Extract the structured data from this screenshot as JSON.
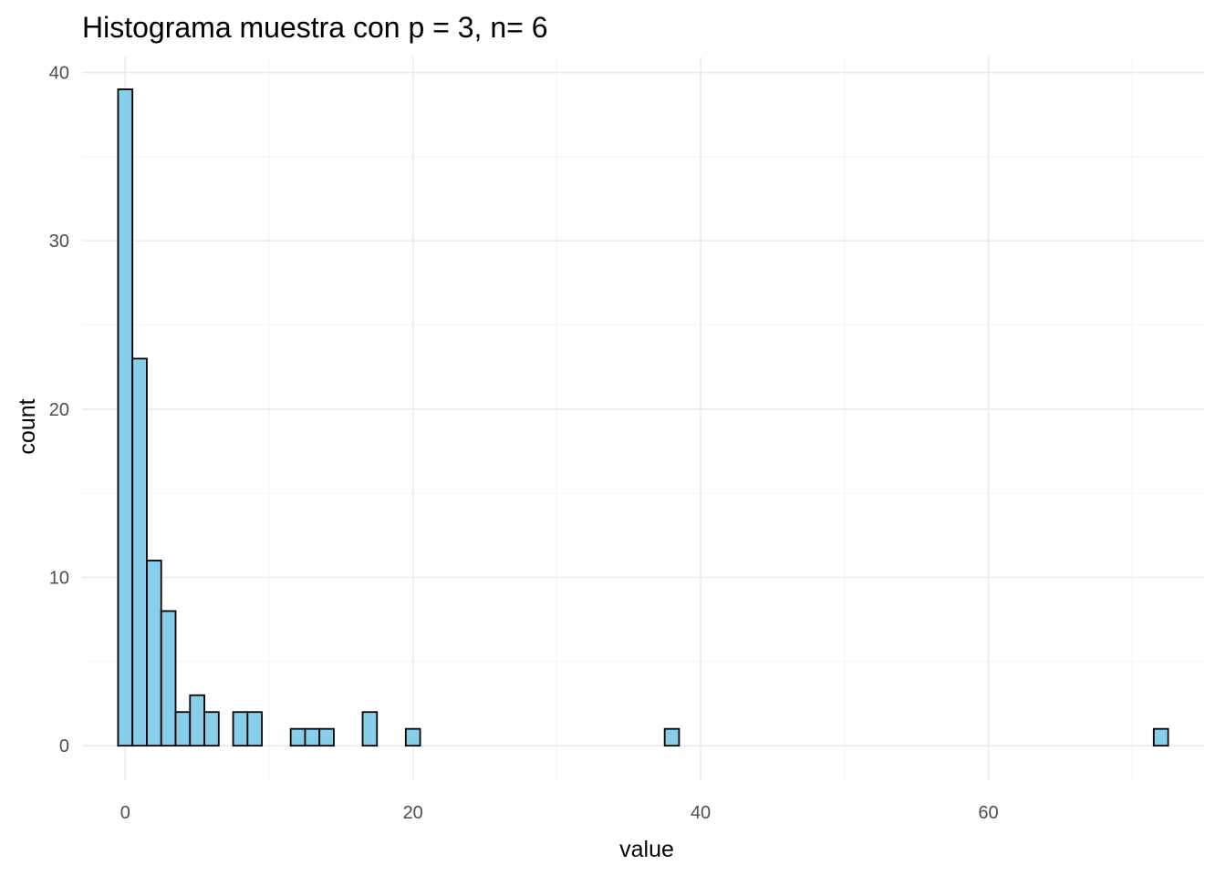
{
  "chart_data": {
    "type": "bar",
    "title": "Histograma muestra con p = 3, n= 6",
    "xlabel": "value",
    "ylabel": "count",
    "bin_width": 1,
    "bins": [
      {
        "x": 0,
        "count": 39
      },
      {
        "x": 1,
        "count": 23
      },
      {
        "x": 2,
        "count": 11
      },
      {
        "x": 3,
        "count": 8
      },
      {
        "x": 4,
        "count": 2
      },
      {
        "x": 5,
        "count": 3
      },
      {
        "x": 6,
        "count": 2
      },
      {
        "x": 7,
        "count": 0
      },
      {
        "x": 8,
        "count": 2
      },
      {
        "x": 9,
        "count": 2
      },
      {
        "x": 10,
        "count": 0
      },
      {
        "x": 11,
        "count": 0
      },
      {
        "x": 12,
        "count": 1
      },
      {
        "x": 13,
        "count": 1
      },
      {
        "x": 14,
        "count": 1
      },
      {
        "x": 15,
        "count": 0
      },
      {
        "x": 16,
        "count": 0
      },
      {
        "x": 17,
        "count": 2
      },
      {
        "x": 18,
        "count": 0
      },
      {
        "x": 19,
        "count": 0
      },
      {
        "x": 20,
        "count": 1
      },
      {
        "x": 21,
        "count": 0
      },
      {
        "x": 22,
        "count": 0
      },
      {
        "x": 23,
        "count": 0
      },
      {
        "x": 24,
        "count": 0
      },
      {
        "x": 25,
        "count": 0
      },
      {
        "x": 26,
        "count": 0
      },
      {
        "x": 27,
        "count": 0
      },
      {
        "x": 28,
        "count": 0
      },
      {
        "x": 29,
        "count": 0
      },
      {
        "x": 30,
        "count": 0
      },
      {
        "x": 31,
        "count": 0
      },
      {
        "x": 32,
        "count": 0
      },
      {
        "x": 33,
        "count": 0
      },
      {
        "x": 34,
        "count": 0
      },
      {
        "x": 35,
        "count": 0
      },
      {
        "x": 36,
        "count": 0
      },
      {
        "x": 37,
        "count": 0
      },
      {
        "x": 38,
        "count": 1
      },
      {
        "x": 39,
        "count": 0
      },
      {
        "x": 40,
        "count": 0
      },
      {
        "x": 41,
        "count": 0
      },
      {
        "x": 42,
        "count": 0
      },
      {
        "x": 43,
        "count": 0
      },
      {
        "x": 44,
        "count": 0
      },
      {
        "x": 45,
        "count": 0
      },
      {
        "x": 46,
        "count": 0
      },
      {
        "x": 47,
        "count": 0
      },
      {
        "x": 48,
        "count": 0
      },
      {
        "x": 49,
        "count": 0
      },
      {
        "x": 50,
        "count": 0
      },
      {
        "x": 51,
        "count": 0
      },
      {
        "x": 52,
        "count": 0
      },
      {
        "x": 53,
        "count": 0
      },
      {
        "x": 54,
        "count": 0
      },
      {
        "x": 55,
        "count": 0
      },
      {
        "x": 56,
        "count": 0
      },
      {
        "x": 57,
        "count": 0
      },
      {
        "x": 58,
        "count": 0
      },
      {
        "x": 59,
        "count": 0
      },
      {
        "x": 60,
        "count": 0
      },
      {
        "x": 61,
        "count": 0
      },
      {
        "x": 62,
        "count": 0
      },
      {
        "x": 63,
        "count": 0
      },
      {
        "x": 64,
        "count": 0
      },
      {
        "x": 65,
        "count": 0
      },
      {
        "x": 66,
        "count": 0
      },
      {
        "x": 67,
        "count": 0
      },
      {
        "x": 68,
        "count": 0
      },
      {
        "x": 69,
        "count": 0
      },
      {
        "x": 70,
        "count": 0
      },
      {
        "x": 71,
        "count": 0
      },
      {
        "x": 72,
        "count": 1
      }
    ],
    "xlim": [
      -3,
      75
    ],
    "ylim": [
      -2.05,
      40.95
    ],
    "xticks": [
      0,
      20,
      40,
      60
    ],
    "xtick_labels": [
      "0",
      "20",
      "40",
      "60"
    ],
    "yticks": [
      0,
      10,
      20,
      30,
      40
    ],
    "ytick_labels": [
      "0",
      "10",
      "20",
      "30",
      "40"
    ],
    "grid": true,
    "legend": "none",
    "colors": {
      "bar_fill": "#87CEEB",
      "bar_outline": "#000000",
      "background": "#FFFFFF"
    }
  }
}
